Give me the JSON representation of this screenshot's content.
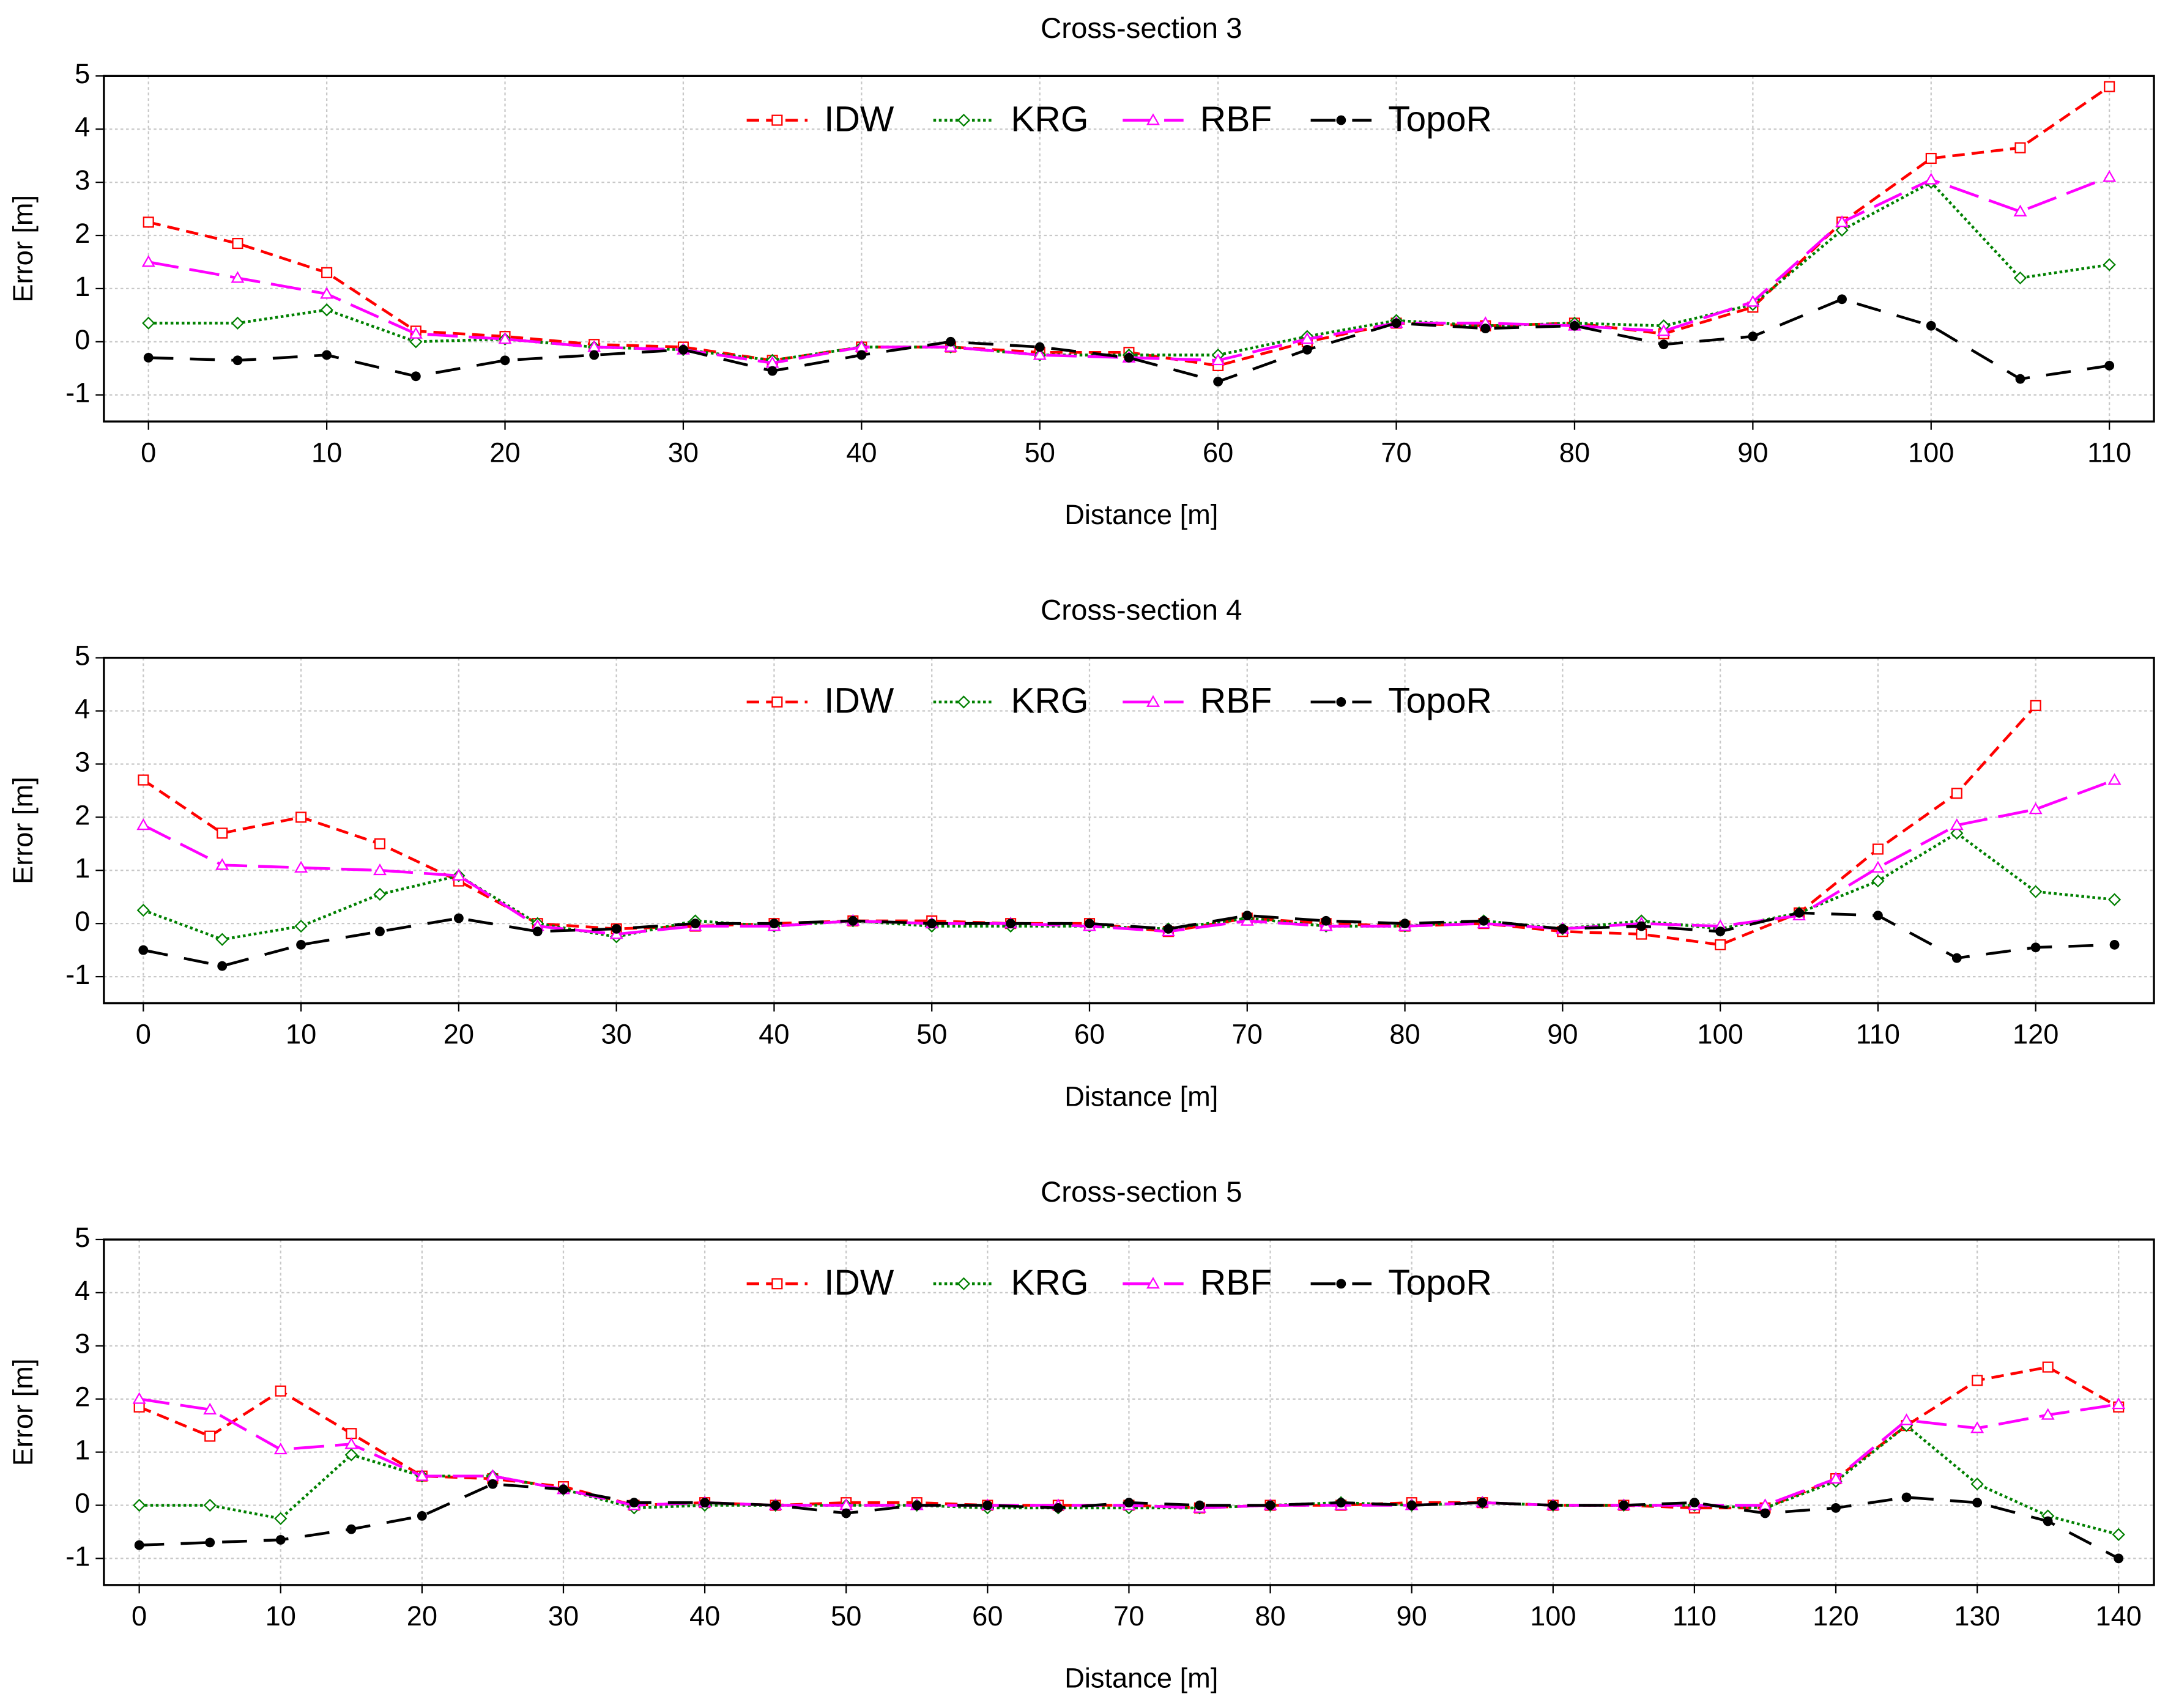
{
  "chart_data": [
    {
      "type": "line",
      "title": "Cross-section 3",
      "xlabel": "Distance [m]",
      "ylabel": "Error [m]",
      "x": [
        0,
        5,
        10,
        15,
        20,
        25,
        30,
        35,
        40,
        45,
        50,
        55,
        60,
        65,
        70,
        75,
        80,
        85,
        90,
        95,
        100,
        105,
        110
      ],
      "series": [
        {
          "name": "IDW",
          "color": "#ff0000",
          "marker": "square",
          "dash": "dashed",
          "values": [
            2.25,
            1.85,
            1.3,
            0.2,
            0.1,
            -0.05,
            -0.1,
            -0.35,
            -0.1,
            -0.1,
            -0.2,
            -0.2,
            -0.45,
            0.0,
            0.35,
            0.3,
            0.35,
            0.15,
            0.65,
            2.25,
            3.45,
            3.65,
            4.8
          ]
        },
        {
          "name": "KRG",
          "color": "#008000",
          "marker": "diamond",
          "dash": "dotted",
          "values": [
            0.35,
            0.35,
            0.6,
            0.0,
            0.05,
            -0.1,
            -0.15,
            -0.35,
            -0.1,
            -0.1,
            -0.25,
            -0.25,
            -0.25,
            0.1,
            0.4,
            0.3,
            0.35,
            0.3,
            0.7,
            2.1,
            3.0,
            1.2,
            1.45
          ]
        },
        {
          "name": "RBF",
          "color": "#ff00ff",
          "marker": "triangle",
          "dash": "long-dash",
          "values": [
            1.5,
            1.2,
            0.9,
            0.15,
            0.05,
            -0.1,
            -0.15,
            -0.4,
            -0.1,
            -0.1,
            -0.25,
            -0.3,
            -0.35,
            0.05,
            0.35,
            0.35,
            0.3,
            0.2,
            0.75,
            2.25,
            3.05,
            2.45,
            3.1
          ]
        },
        {
          "name": "TopoR",
          "color": "#000000",
          "marker": "dot",
          "dash": "dash-gap",
          "values": [
            -0.3,
            -0.35,
            -0.25,
            -0.65,
            -0.35,
            -0.25,
            -0.15,
            -0.55,
            -0.25,
            0.0,
            -0.1,
            -0.3,
            -0.75,
            -0.15,
            0.35,
            0.25,
            0.3,
            -0.05,
            0.1,
            0.8,
            0.3,
            -0.7,
            -0.45
          ]
        }
      ],
      "xlim": [
        -2.5,
        112.5
      ],
      "xticks": [
        0,
        10,
        20,
        30,
        40,
        50,
        60,
        70,
        80,
        90,
        100,
        110
      ],
      "ylim": [
        -1.5,
        5
      ],
      "yticks": [
        -1,
        0,
        1,
        2,
        3,
        4,
        5
      ],
      "grid": true,
      "legend": "top"
    },
    {
      "type": "line",
      "title": "Cross-section 4",
      "xlabel": "Distance [m]",
      "ylabel": "Error [m]",
      "x": [
        0,
        5,
        10,
        15,
        20,
        25,
        30,
        35,
        40,
        45,
        50,
        55,
        60,
        65,
        70,
        75,
        80,
        85,
        90,
        95,
        100,
        105,
        110,
        115,
        120,
        125
      ],
      "series": [
        {
          "name": "IDW",
          "color": "#ff0000",
          "marker": "square",
          "dash": "dashed",
          "values": [
            2.7,
            1.7,
            2.0,
            1.5,
            0.8,
            0.0,
            -0.1,
            -0.05,
            0.0,
            0.05,
            0.05,
            0.0,
            0.0,
            -0.15,
            0.1,
            0.0,
            -0.05,
            0.0,
            -0.15,
            -0.2,
            -0.4,
            0.2,
            1.4,
            2.45,
            4.1,
            null
          ]
        },
        {
          "name": "KRG",
          "color": "#008000",
          "marker": "diamond",
          "dash": "dotted",
          "values": [
            0.25,
            -0.3,
            -0.05,
            0.55,
            0.9,
            0.0,
            -0.25,
            0.05,
            -0.05,
            0.05,
            -0.05,
            -0.05,
            -0.05,
            -0.1,
            0.1,
            -0.05,
            -0.05,
            0.05,
            -0.1,
            0.05,
            -0.1,
            0.2,
            0.8,
            1.7,
            0.6,
            0.45
          ]
        },
        {
          "name": "RBF",
          "color": "#ff00ff",
          "marker": "triangle",
          "dash": "long-dash",
          "values": [
            1.85,
            1.1,
            1.05,
            1.0,
            0.9,
            -0.05,
            -0.2,
            -0.05,
            -0.05,
            0.05,
            0.0,
            0.0,
            -0.05,
            -0.15,
            0.05,
            -0.05,
            -0.05,
            0.0,
            -0.1,
            0.0,
            -0.05,
            0.15,
            1.05,
            1.85,
            2.15,
            2.7
          ]
        },
        {
          "name": "TopoR",
          "color": "#000000",
          "marker": "dot",
          "dash": "dash-gap",
          "values": [
            -0.5,
            -0.8,
            -0.4,
            -0.15,
            0.1,
            -0.15,
            -0.1,
            0.0,
            0.0,
            0.05,
            0.0,
            0.0,
            0.0,
            -0.1,
            0.15,
            0.05,
            0.0,
            0.05,
            -0.1,
            -0.05,
            -0.15,
            0.2,
            0.15,
            -0.65,
            -0.45,
            -0.4
          ]
        }
      ],
      "xlim": [
        -2.5,
        127.5
      ],
      "xticks": [
        0,
        10,
        20,
        30,
        40,
        50,
        60,
        70,
        80,
        90,
        100,
        110,
        120
      ],
      "ylim": [
        -1.5,
        5
      ],
      "yticks": [
        -1,
        0,
        1,
        2,
        3,
        4,
        5
      ],
      "grid": true,
      "legend": "top"
    },
    {
      "type": "line",
      "title": "Cross-section 5",
      "xlabel": "Distance [m]",
      "ylabel": "Error [m]",
      "x": [
        0,
        5,
        10,
        15,
        20,
        25,
        30,
        35,
        40,
        45,
        50,
        55,
        60,
        65,
        70,
        75,
        80,
        85,
        90,
        95,
        100,
        105,
        110,
        115,
        120,
        125,
        130,
        135,
        140
      ],
      "series": [
        {
          "name": "IDW",
          "color": "#ff0000",
          "marker": "square",
          "dash": "dashed",
          "values": [
            1.85,
            1.3,
            2.15,
            1.35,
            0.55,
            0.5,
            0.35,
            0.0,
            0.05,
            0.0,
            0.05,
            0.05,
            0.0,
            0.0,
            0.0,
            -0.05,
            0.0,
            0.0,
            0.05,
            0.05,
            0.0,
            0.0,
            -0.05,
            -0.05,
            0.5,
            1.5,
            2.35,
            2.6,
            1.85
          ]
        },
        {
          "name": "KRG",
          "color": "#008000",
          "marker": "diamond",
          "dash": "dotted",
          "values": [
            0.0,
            0.0,
            -0.25,
            0.95,
            0.55,
            0.55,
            0.3,
            -0.05,
            0.0,
            0.0,
            0.0,
            0.0,
            -0.05,
            -0.05,
            -0.05,
            -0.05,
            0.0,
            0.05,
            0.0,
            0.05,
            0.0,
            0.0,
            0.0,
            -0.05,
            0.45,
            1.5,
            0.4,
            -0.2,
            -0.55
          ]
        },
        {
          "name": "RBF",
          "color": "#ff00ff",
          "marker": "triangle",
          "dash": "long-dash",
          "values": [
            2.0,
            1.8,
            1.05,
            1.15,
            0.55,
            0.55,
            0.3,
            0.0,
            0.05,
            0.0,
            0.0,
            0.0,
            0.0,
            0.0,
            0.0,
            -0.05,
            0.0,
            0.0,
            0.0,
            0.05,
            0.0,
            0.0,
            0.0,
            0.0,
            0.5,
            1.6,
            1.45,
            1.7,
            1.9
          ]
        },
        {
          "name": "TopoR",
          "color": "#000000",
          "marker": "dot",
          "dash": "dash-gap",
          "values": [
            -0.75,
            -0.7,
            -0.65,
            -0.45,
            -0.2,
            0.4,
            0.3,
            0.05,
            0.05,
            0.0,
            -0.15,
            0.0,
            0.0,
            -0.05,
            0.05,
            0.0,
            0.0,
            0.05,
            0.0,
            0.05,
            0.0,
            0.0,
            0.05,
            -0.15,
            -0.05,
            0.15,
            0.05,
            -0.3,
            -1.0
          ]
        }
      ],
      "xlim": [
        -2.5,
        142.5
      ],
      "xticks": [
        0,
        10,
        20,
        30,
        40,
        50,
        60,
        70,
        80,
        90,
        100,
        110,
        120,
        130,
        140
      ],
      "ylim": [
        -1.5,
        5
      ],
      "yticks": [
        -1,
        0,
        1,
        2,
        3,
        4,
        5
      ],
      "grid": true,
      "legend": "top"
    }
  ]
}
